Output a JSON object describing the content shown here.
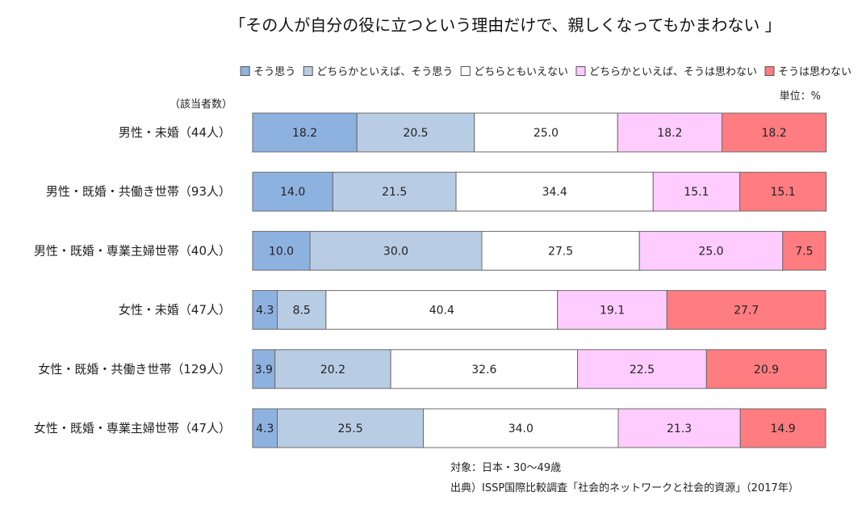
{
  "title": "「その人が自分の役に立つという理由だけで、親しくなってもかまわない 」",
  "group_header": "（該当者数）",
  "unit_label": "単位：%",
  "footnote_target": "対象：日本・30〜49歳",
  "footnote_source": "出典）ISSP国際比較調査「社会的ネットワークと社会的資源」（2017年）",
  "chart_data": {
    "type": "bar",
    "orientation": "horizontal",
    "stacked": true,
    "percent": true,
    "xlim": [
      0,
      100
    ],
    "categories": [
      "男性・未婚（44人）",
      "男性・既婚・共働き世帯（93人）",
      "男性・既婚・専業主婦世帯（40人）",
      "女性・未婚（47人）",
      "女性・既婚・共働き世帯（129人）",
      "女性・既婚・専業主婦世帯（47人）"
    ],
    "series": [
      {
        "name": "そう思う",
        "color": "#8eb2e0",
        "values": [
          18.2,
          14.0,
          10.0,
          4.3,
          3.9,
          4.3
        ]
      },
      {
        "name": "どちらかといえば、そう思う",
        "color": "#b8cce4",
        "values": [
          20.5,
          21.5,
          30.0,
          8.5,
          20.2,
          25.5
        ]
      },
      {
        "name": "どちらともいえない",
        "color": "#ffffff",
        "values": [
          25.0,
          34.4,
          27.5,
          40.4,
          32.6,
          34.0
        ]
      },
      {
        "name": "どちらかといえば、そうは思わない",
        "color": "#ffccff",
        "values": [
          18.2,
          15.1,
          25.0,
          19.1,
          22.5,
          21.3
        ]
      },
      {
        "name": "そうは思わない",
        "color": "#ff7c80",
        "values": [
          18.2,
          15.1,
          7.5,
          27.7,
          20.9,
          14.9
        ]
      }
    ],
    "legend_position": "top-right",
    "grid": false
  }
}
